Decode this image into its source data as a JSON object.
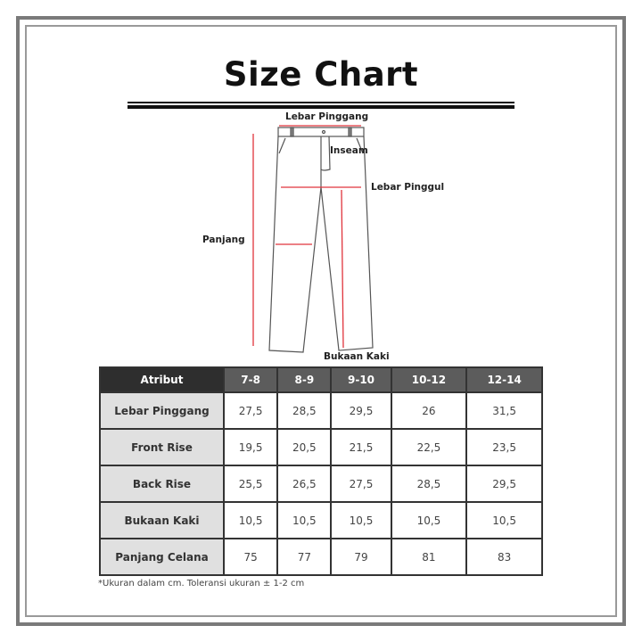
{
  "title": "Size Chart",
  "diagram_labels": {
    "waist": "Lebar Pinggang",
    "inseam": "Inseam",
    "hip": "Lebar Pinggul",
    "length": "Panjang",
    "leg_opening": "Bukaan Kaki"
  },
  "colors": {
    "measure_line": "#e0343c",
    "header_dark": "#2e2e2e",
    "header": "#5c5c5c",
    "attr_bg": "#e0e0e0"
  },
  "table": {
    "headers": [
      "Atribut",
      "7-8",
      "8-9",
      "9-10",
      "10-12",
      "12-14"
    ],
    "rows": [
      {
        "label": "Lebar Pinggang",
        "values": [
          "27,5",
          "28,5",
          "29,5",
          "26",
          "31,5"
        ]
      },
      {
        "label": "Front Rise",
        "values": [
          "19,5",
          "20,5",
          "21,5",
          "22,5",
          "23,5"
        ]
      },
      {
        "label": "Back Rise",
        "values": [
          "25,5",
          "26,5",
          "27,5",
          "28,5",
          "29,5"
        ]
      },
      {
        "label": "Bukaan Kaki",
        "values": [
          "10,5",
          "10,5",
          "10,5",
          "10,5",
          "10,5"
        ]
      },
      {
        "label": "Panjang Celana",
        "values": [
          "75",
          "77",
          "79",
          "81",
          "83"
        ]
      }
    ]
  },
  "note": "*Ukuran dalam cm. Toleransi ukuran ± 1-2 cm"
}
